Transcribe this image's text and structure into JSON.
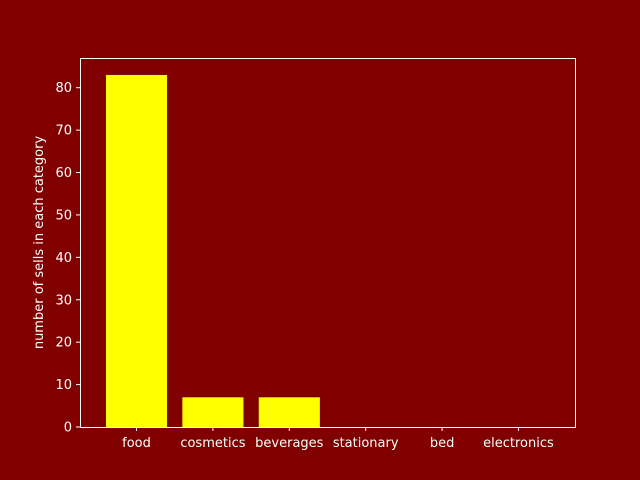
{
  "colors": {
    "background": "#800000",
    "bar": "#ffff00",
    "axis": "#ffffff",
    "text": "#ffffff"
  },
  "chart_data": {
    "type": "bar",
    "title": "",
    "xlabel": "",
    "ylabel": "number of sells in each category",
    "categories": [
      "food",
      "cosmetics",
      "beverages",
      "stationary",
      "bed",
      "electronics"
    ],
    "values": [
      83,
      7,
      7,
      0,
      0,
      0
    ],
    "ylim": [
      0,
      87
    ],
    "yticks": [
      0,
      10,
      20,
      30,
      40,
      50,
      60,
      70,
      80
    ],
    "grid": false,
    "legend": "none"
  }
}
